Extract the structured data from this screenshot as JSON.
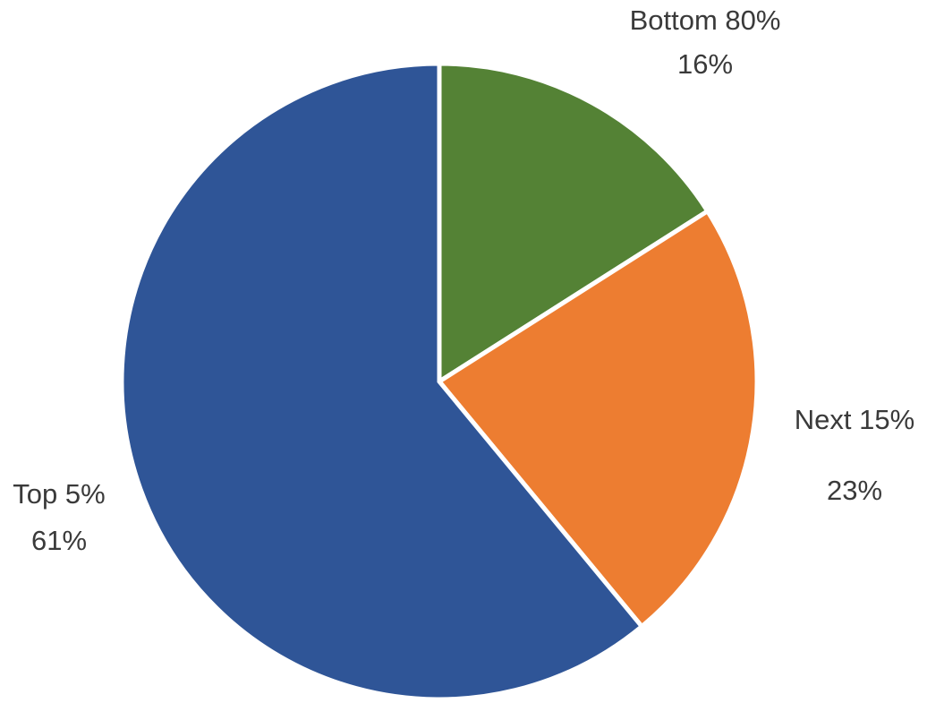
{
  "chart_data": {
    "type": "pie",
    "categories": [
      "Bottom 80%",
      "Next 15%",
      "Top 5%"
    ],
    "values": [
      16,
      23,
      61
    ],
    "unit": "%",
    "colors": [
      "#548235",
      "#ED7D31",
      "#2F5597"
    ],
    "data_labels": [
      {
        "name": "Bottom 80%",
        "value": "16%"
      },
      {
        "name": "Next 15%",
        "value": "23%"
      },
      {
        "name": "Top 5%",
        "value": "61%"
      }
    ],
    "start_angle": "12 o'clock",
    "direction": "clockwise",
    "legend": "none"
  }
}
